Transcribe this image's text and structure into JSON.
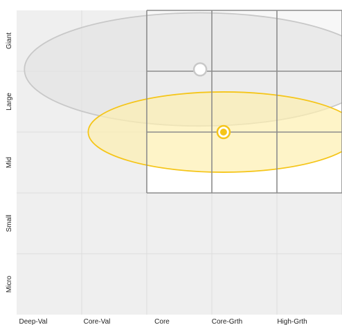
{
  "chart_data": {
    "type": "scatter",
    "title": "",
    "xlabel": "",
    "ylabel": "",
    "x_categories": [
      "Deep-Val",
      "Core-Val",
      "Core",
      "Core-Grth",
      "High-Grth"
    ],
    "y_categories": [
      "Micro",
      "Small",
      "Mid",
      "Large",
      "Giant"
    ],
    "grid": true,
    "style_box_cells": [
      {
        "row": "Large",
        "cols": [
          "Core-Val",
          "Core",
          "Core-Grth"
        ]
      },
      {
        "row": "Mid",
        "cols": [
          "Core-Val",
          "Core",
          "Core-Grth"
        ]
      },
      {
        "row": "Small",
        "cols": [
          "Core-Val",
          "Core",
          "Core-Grth"
        ]
      }
    ],
    "series": [
      {
        "centroid": {
          "x": 3.18,
          "y": 3.0
        },
        "ellipse": {
          "x_radius": 2.08,
          "y_radius": 0.66
        },
        "color": "#f5c518",
        "fill": "#fdf0b0"
      },
      {
        "centroid": {
          "x": 2.82,
          "y": 4.03
        },
        "ellipse": {
          "x_radius": 2.7,
          "y_radius": 0.93
        },
        "color": "#c8c8c8",
        "fill": "#e4e4e4"
      }
    ]
  }
}
